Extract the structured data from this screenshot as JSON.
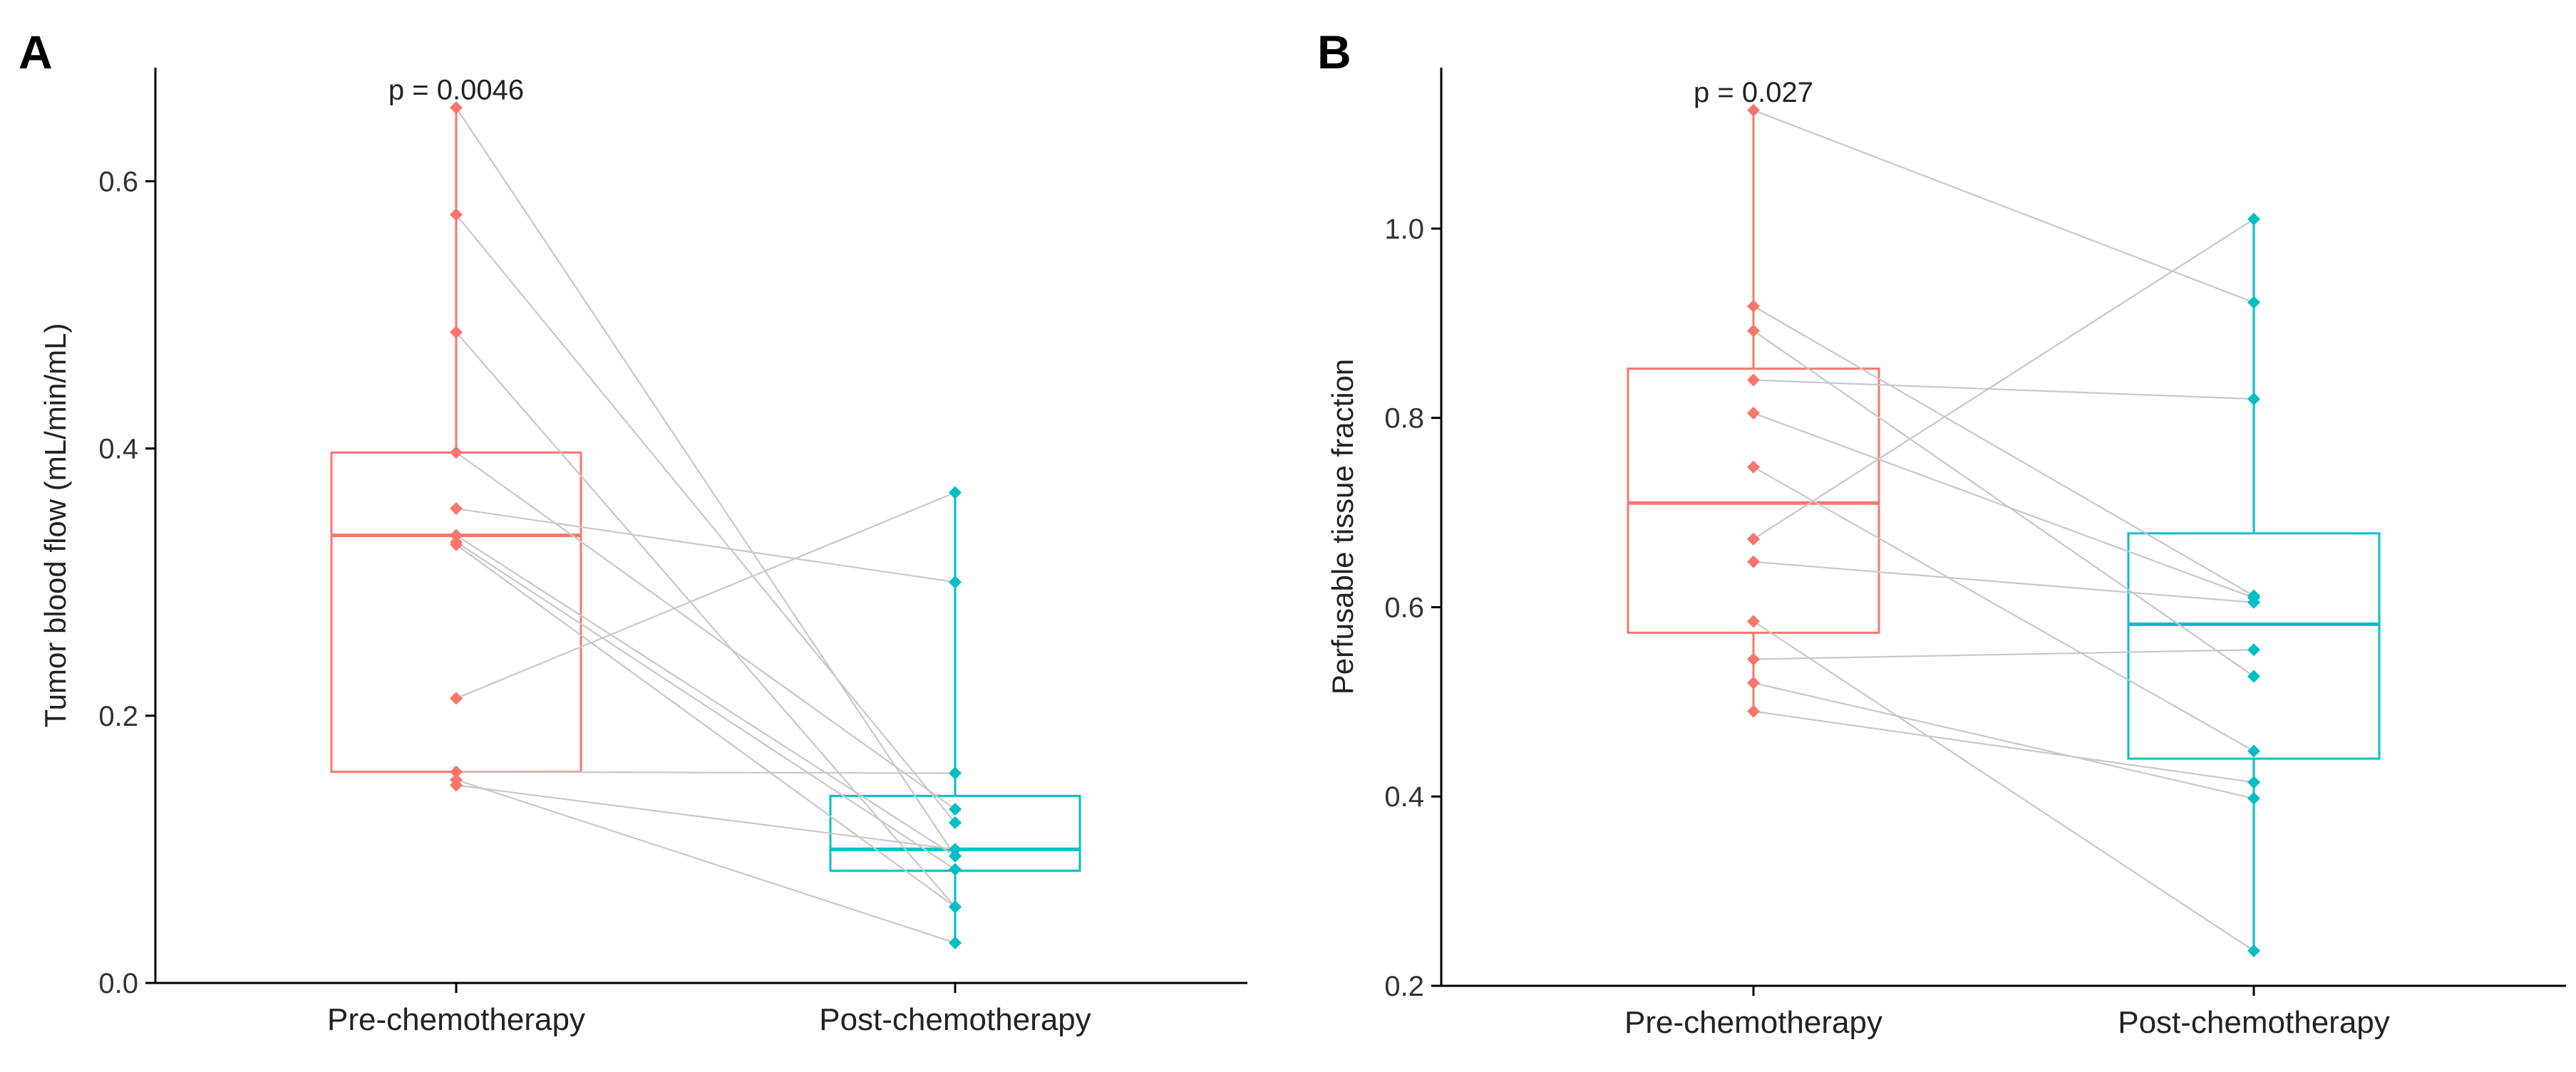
{
  "figure": {
    "panels": [
      "A",
      "B"
    ]
  },
  "colors": {
    "pre": "#F8766D",
    "post": "#00BFC4",
    "pair_line": "#C8C8C8",
    "axis": "#000000"
  },
  "chart_data": [
    {
      "type": "box",
      "panel": "A",
      "title": "",
      "xlabel": "",
      "ylabel": "Tumor blood flow (mL/min/mL)",
      "categories": [
        "Pre-chemotherapy",
        "Post-chemotherapy"
      ],
      "ylim": [
        0,
        0.685
      ],
      "yticks": [
        0.0,
        0.2,
        0.4,
        0.6
      ],
      "ytick_labels": [
        "0.0",
        "0.2",
        "0.4",
        "0.6"
      ],
      "annotation": "p = 0.0046",
      "box": [
        {
          "q1": 0.158,
          "median": 0.335,
          "q3": 0.397,
          "whisker_low": 0.148,
          "whisker_high": 0.655
        },
        {
          "q1": 0.084,
          "median": 0.1,
          "q3": 0.14,
          "whisker_low": 0.03,
          "whisker_high": 0.367
        }
      ],
      "pairs": [
        [
          0.655,
          0.095
        ],
        [
          0.575,
          0.12
        ],
        [
          0.487,
          0.057
        ],
        [
          0.397,
          0.13
        ],
        [
          0.355,
          0.3
        ],
        [
          0.335,
          0.095
        ],
        [
          0.33,
          0.085
        ],
        [
          0.328,
          0.057
        ],
        [
          0.213,
          0.367
        ],
        [
          0.158,
          0.157
        ],
        [
          0.152,
          0.03
        ],
        [
          0.148,
          0.1
        ]
      ]
    },
    {
      "type": "box",
      "panel": "B",
      "title": "",
      "xlabel": "",
      "ylabel": "Perfusable tissue fraction",
      "categories": [
        "Pre-chemotherapy",
        "Post-chemotherapy"
      ],
      "ylim": [
        0.2,
        1.17
      ],
      "yticks": [
        0.2,
        0.4,
        0.6,
        0.8,
        1.0
      ],
      "ytick_labels": [
        "0.2",
        "0.4",
        "0.6",
        "0.8",
        "1.0"
      ],
      "annotation": "p = 0.027",
      "box": [
        {
          "q1": 0.573,
          "median": 0.71,
          "q3": 0.852,
          "whisker_low": 0.49,
          "whisker_high": 1.125
        },
        {
          "q1": 0.44,
          "median": 0.582,
          "q3": 0.678,
          "whisker_low": 0.237,
          "whisker_high": 1.01
        }
      ],
      "pairs": [
        [
          1.125,
          0.922
        ],
        [
          0.918,
          0.612
        ],
        [
          0.892,
          0.527
        ],
        [
          0.84,
          0.82
        ],
        [
          0.805,
          0.61
        ],
        [
          0.748,
          0.448
        ],
        [
          0.672,
          1.01
        ],
        [
          0.648,
          0.605
        ],
        [
          0.585,
          0.237
        ],
        [
          0.545,
          0.555
        ],
        [
          0.52,
          0.398
        ],
        [
          0.49,
          0.415
        ]
      ]
    }
  ]
}
